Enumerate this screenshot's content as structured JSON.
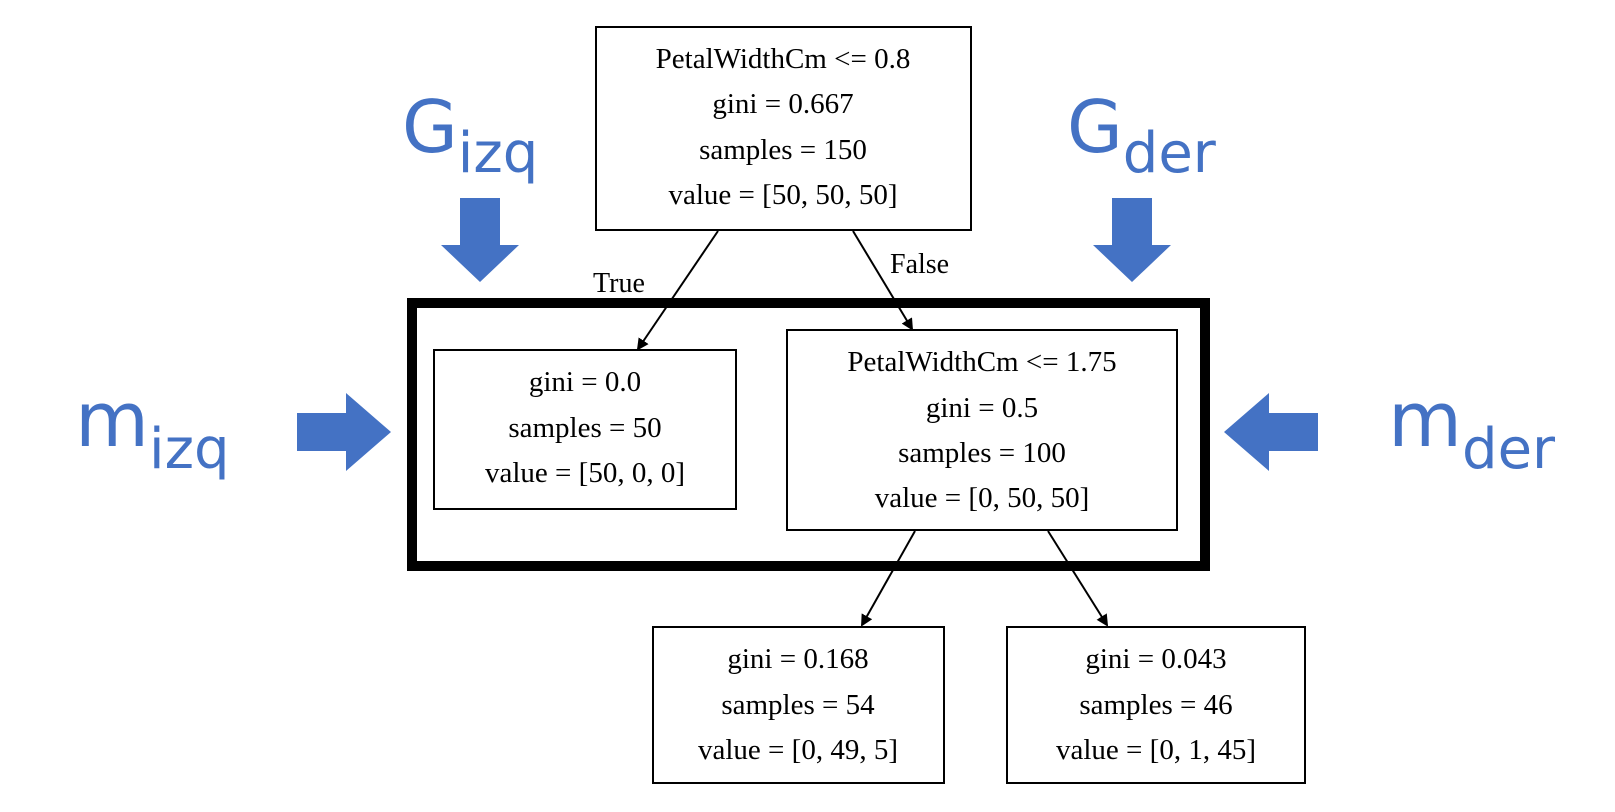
{
  "tree": {
    "root": {
      "lines": [
        "PetalWidthCm <= 0.8",
        "gini = 0.667",
        "samples = 150",
        "value = [50, 50, 50]"
      ]
    },
    "left_child": {
      "lines": [
        "gini = 0.0",
        "samples = 50",
        "value = [50, 0, 0]"
      ]
    },
    "right_child": {
      "lines": [
        "PetalWidthCm <= 1.75",
        "gini = 0.5",
        "samples = 100",
        "value = [0, 50, 50]"
      ]
    },
    "leaf_a": {
      "lines": [
        "gini = 0.168",
        "samples = 54",
        "value = [0, 49, 5]"
      ]
    },
    "leaf_b": {
      "lines": [
        "gini = 0.043",
        "samples = 46",
        "value = [0, 1, 45]"
      ]
    },
    "edge_labels": {
      "true": "True",
      "false": "False"
    }
  },
  "annotations": {
    "g_left": {
      "base": "G",
      "sub": "izq"
    },
    "g_right": {
      "base": "G",
      "sub": "der"
    },
    "m_left": {
      "base": "m",
      "sub": "izq"
    },
    "m_right": {
      "base": "m",
      "sub": "der"
    }
  },
  "colors": {
    "accent": "#4472c4",
    "stroke": "#000000",
    "background": "#ffffff"
  }
}
